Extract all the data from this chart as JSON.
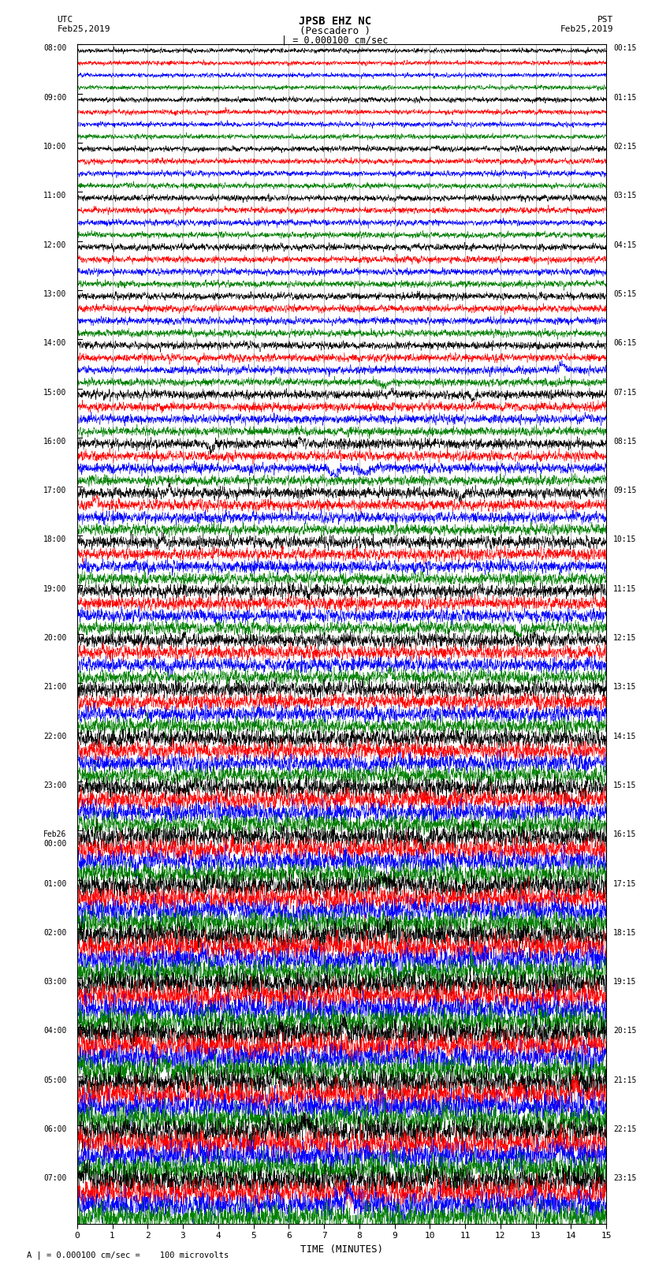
{
  "title_line1": "JPSB EHZ NC",
  "title_line2": "(Pescadero )",
  "title_line3": "| = 0.000100 cm/sec",
  "left_label_line1": "UTC",
  "left_label_line2": "Feb25,2019",
  "right_label_line1": "PST",
  "right_label_line2": "Feb25,2019",
  "bottom_label": "TIME (MINUTES)",
  "scale_label": "A | = 0.000100 cm/sec =    100 microvolts",
  "utc_times": [
    "08:00",
    "09:00",
    "10:00",
    "11:00",
    "12:00",
    "13:00",
    "14:00",
    "15:00",
    "16:00",
    "17:00",
    "18:00",
    "19:00",
    "20:00",
    "21:00",
    "22:00",
    "23:00",
    "Feb26\n00:00",
    "01:00",
    "02:00",
    "03:00",
    "04:00",
    "05:00",
    "06:00",
    "07:00"
  ],
  "pst_times": [
    "00:15",
    "01:15",
    "02:15",
    "03:15",
    "04:15",
    "05:15",
    "06:15",
    "07:15",
    "08:15",
    "09:15",
    "10:15",
    "11:15",
    "12:15",
    "13:15",
    "14:15",
    "15:15",
    "16:15",
    "17:15",
    "18:15",
    "19:15",
    "20:15",
    "21:15",
    "22:15",
    "23:15"
  ],
  "colors": [
    "black",
    "red",
    "blue",
    "green"
  ],
  "n_hours": 24,
  "traces_per_hour": 4,
  "x_ticks": [
    0,
    1,
    2,
    3,
    4,
    5,
    6,
    7,
    8,
    9,
    10,
    11,
    12,
    13,
    14,
    15
  ],
  "duration_minutes": 15,
  "background_color": "white",
  "seed": 42
}
